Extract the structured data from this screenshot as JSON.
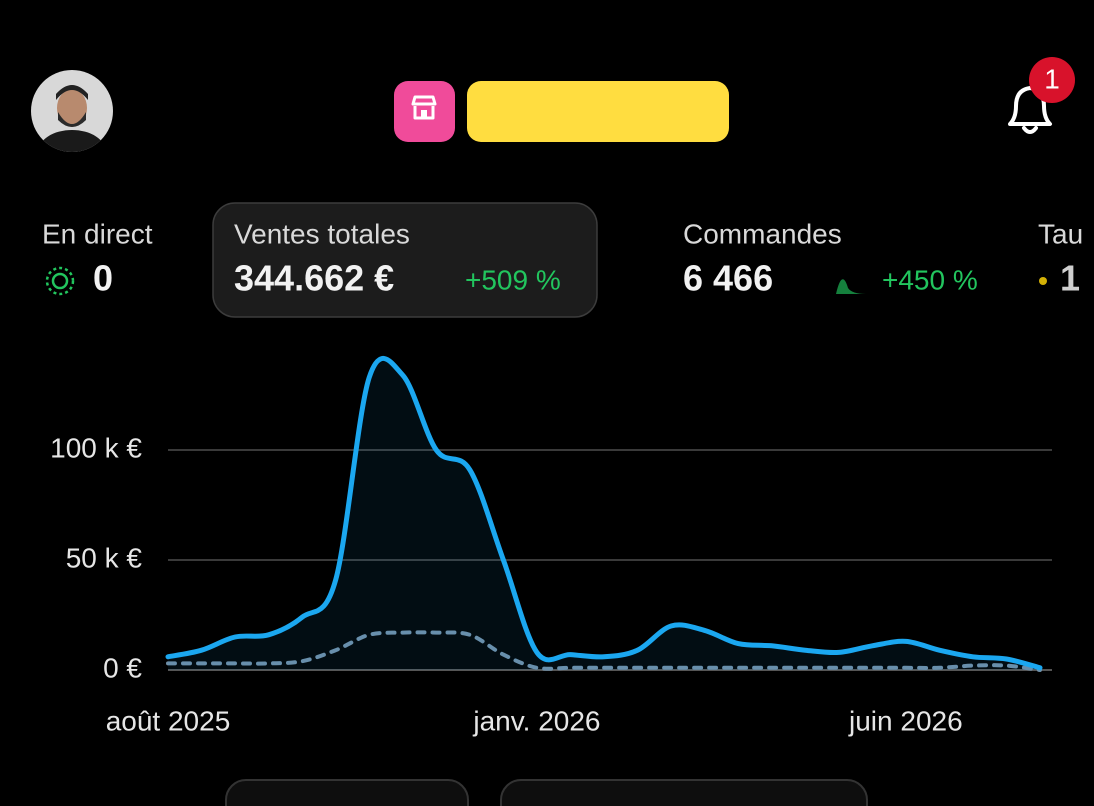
{
  "header": {
    "notification_count": "1"
  },
  "metrics": [
    {
      "label": "En direct",
      "value": "0"
    },
    {
      "label": "Ventes totales",
      "value": "344.662 €",
      "change": "+509 %"
    },
    {
      "label": "Commandes",
      "value": "6 466",
      "change": "+450 %"
    },
    {
      "label": "Tau",
      "value": "1"
    }
  ],
  "chart_data": {
    "type": "line",
    "categories": [
      "août 2025",
      null,
      null,
      null,
      null,
      null,
      null,
      null,
      null,
      null,
      null,
      "janv. 2026",
      null,
      null,
      null,
      null,
      null,
      null,
      null,
      null,
      null,
      null,
      "juin 2026",
      null,
      null,
      null,
      null
    ],
    "series": [
      {
        "color": "#1ba7f0",
        "area": true,
        "values": [
          6,
          9,
          15,
          16,
          24,
          41,
          133,
          134,
          100,
          91,
          50,
          8,
          7,
          6,
          9,
          20,
          18,
          12,
          11,
          9,
          8,
          11,
          13,
          9,
          6,
          5,
          1
        ]
      },
      {
        "color": "#6f8ea6",
        "dashed": true,
        "values": [
          3,
          3,
          3,
          3,
          4,
          9,
          16,
          17,
          17,
          16,
          7,
          1,
          1,
          1,
          1,
          1,
          1,
          1,
          1,
          1,
          1,
          1,
          1,
          1,
          2,
          2,
          0
        ]
      }
    ],
    "ylim": [
      0,
      140
    ],
    "yticks": [
      {
        "value": 0,
        "label": "0 €"
      },
      {
        "value": 50,
        "label": "50 k €"
      },
      {
        "value": 100,
        "label": "100 k €"
      }
    ],
    "grid": true
  }
}
